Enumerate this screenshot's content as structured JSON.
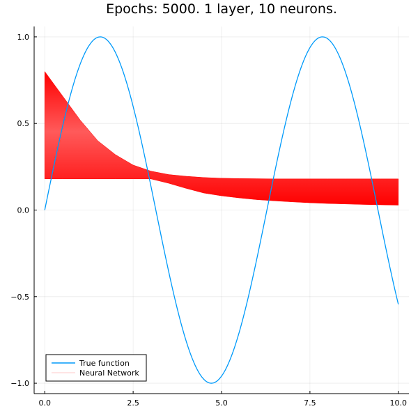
{
  "chart_data": {
    "type": "line",
    "title": "Epochs: 5000. 1 layer, 10 neurons.",
    "xlabel": "",
    "ylabel": "",
    "xlim": [
      -0.3,
      10.3
    ],
    "ylim": [
      -1.06,
      1.06
    ],
    "x_ticks": [
      0.0,
      2.5,
      5.0,
      7.5,
      10.0
    ],
    "x_tick_labels": [
      "0.0",
      "2.5",
      "5.0",
      "7.5",
      "10.0"
    ],
    "y_ticks": [
      -1.0,
      -0.5,
      0.0,
      0.5,
      1.0
    ],
    "y_tick_labels": [
      "−1.0",
      "−0.5",
      "0.0",
      "0.5",
      "1.0"
    ],
    "grid": true,
    "legend": {
      "position": "bottom-left",
      "entries": [
        "True function",
        "Neural Network"
      ]
    },
    "series": [
      {
        "name": "True function",
        "color": "#009AFA",
        "function": "sin(x)",
        "x": [
          0,
          0.5,
          1.0,
          1.5708,
          2.0,
          2.5,
          3.0,
          3.1416,
          3.5,
          4.0,
          4.5,
          4.7124,
          5.0,
          5.5,
          6.0,
          6.2832,
          6.5,
          7.0,
          7.5,
          7.854,
          8.0,
          8.5,
          9.0,
          9.4248,
          9.5,
          10.0
        ],
        "values": [
          0.0,
          0.479,
          0.841,
          1.0,
          0.909,
          0.598,
          0.141,
          0.0,
          -0.351,
          -0.757,
          -0.978,
          -1.0,
          -0.959,
          -0.706,
          -0.279,
          0.0,
          0.215,
          0.657,
          0.938,
          1.0,
          0.989,
          0.798,
          0.412,
          0.0,
          -0.075,
          -0.544
        ]
      },
      {
        "name": "Neural Network",
        "color": "#FF0000",
        "type": "band",
        "x": [
          0,
          0.5,
          1.0,
          1.5,
          2.0,
          2.5,
          3.0,
          3.5,
          4.0,
          4.5,
          5.0,
          5.5,
          6.0,
          6.5,
          7.0,
          7.5,
          8.0,
          8.5,
          9.0,
          9.5,
          10.0
        ],
        "upper": [
          0.8,
          0.66,
          0.52,
          0.4,
          0.32,
          0.26,
          0.225,
          0.205,
          0.195,
          0.188,
          0.184,
          0.182,
          0.181,
          0.18,
          0.18,
          0.18,
          0.18,
          0.18,
          0.18,
          0.18,
          0.18
        ],
        "lower": [
          0.18,
          0.18,
          0.18,
          0.18,
          0.18,
          0.18,
          0.18,
          0.155,
          0.125,
          0.098,
          0.082,
          0.07,
          0.06,
          0.053,
          0.047,
          0.042,
          0.038,
          0.035,
          0.032,
          0.03,
          0.028
        ]
      }
    ]
  }
}
